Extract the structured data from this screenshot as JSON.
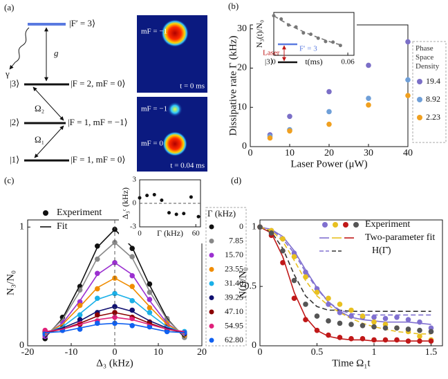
{
  "level_diagram": {
    "label": "(a)",
    "levels": [
      "|F′ = 3⟩",
      "|F = 2, mF = 0⟩",
      "|F = 1, mF = −1⟩",
      "|F = 1, mF = 0⟩"
    ],
    "states": [
      "|3⟩",
      "|2⟩",
      "|1⟩"
    ],
    "gamma": "γ",
    "coupling": "g",
    "omega2": "Ω₂",
    "omega1": "Ω₁",
    "images": [
      {
        "labels": [
          "mF = −1"
        ],
        "time": "t = 0 ms"
      },
      {
        "labels": [
          "mF = −1",
          "mF = 0"
        ],
        "time": "t = 0.04 ms"
      }
    ]
  },
  "chart_data": [
    {
      "type": "scatter",
      "label": "(b)",
      "xlabel": "Laser Power (μW)",
      "ylabel": "Dissipative rate Γ (kHz)",
      "xlim": [
        0,
        40
      ],
      "xticks": [
        0,
        10,
        20,
        30,
        40
      ],
      "ylim": [
        0,
        31
      ],
      "yticks": [
        0,
        10,
        20,
        30
      ],
      "legend_title": "Phase Space Density",
      "x": [
        5,
        10,
        20,
        30,
        40
      ],
      "series": [
        {
          "name": "19.4",
          "color": "#7b6fc7",
          "style": "points",
          "values": [
            3,
            7.7,
            14,
            20.7,
            26.7
          ]
        },
        {
          "name": "8.92",
          "color": "#6f9fd8",
          "style": "points",
          "values": [
            2.6,
            4.3,
            8.9,
            12.3,
            17
          ]
        },
        {
          "name": "2.23",
          "color": "#f0a020",
          "style": "points",
          "values": [
            2.2,
            4,
            5.7,
            10.6,
            13
          ]
        }
      ]
    },
    {
      "type": "scatter",
      "xlabel": "t(ms)",
      "ylabel": "N₃(t)/N₀",
      "xlim": [
        0,
        0.065
      ],
      "xticks": [
        0,
        0.06
      ],
      "ylim": [
        0.4,
        1.05
      ],
      "yticks": [],
      "annotations": [
        "Laser",
        "F′ = 3",
        "|3⟩"
      ],
      "x": [
        0,
        0.006,
        0.012,
        0.018,
        0.024,
        0.03,
        0.036,
        0.042,
        0.048,
        0.054
      ],
      "series": [
        {
          "color": "#777777",
          "style": "points",
          "values": [
            1,
            0.95,
            0.86,
            0.83,
            0.74,
            0.72,
            0.66,
            0.61,
            0.6,
            0.55
          ]
        },
        {
          "color": "#777777",
          "style": "dashed",
          "values": [
            1,
            0.93,
            0.87,
            0.81,
            0.76,
            0.71,
            0.67,
            0.63,
            0.59,
            0.56
          ]
        }
      ]
    },
    {
      "type": "scatter",
      "label": "(c)",
      "xlabel": "Δ₃ (kHz)",
      "ylabel": "N₃/N₀",
      "xlim": [
        -20,
        20
      ],
      "xticks": [
        -20,
        -10,
        0,
        10,
        20
      ],
      "ylim": [
        0,
        1.06
      ],
      "yticks": [
        0,
        1
      ],
      "legend": [
        "Experiment",
        "Fit"
      ],
      "legend_title": "Γ (kHz)",
      "x": [
        -16,
        -12,
        -8,
        -4,
        0,
        4,
        8,
        12,
        16
      ],
      "series": [
        {
          "name": "0",
          "color": "#111111",
          "style": "points",
          "values": [
            0.06,
            0.24,
            0.5,
            0.84,
            0.98,
            0.82,
            0.52,
            0.22,
            0.08
          ]
        },
        {
          "name": "7.85",
          "color": "#888888",
          "style": "points",
          "values": [
            0.09,
            0.21,
            0.47,
            0.73,
            0.87,
            0.75,
            0.45,
            0.23,
            0.07
          ]
        },
        {
          "name": "15.70",
          "color": "#9b30d0",
          "style": "points",
          "values": [
            0.08,
            0.2,
            0.37,
            0.61,
            0.7,
            0.59,
            0.39,
            0.18,
            0.1
          ]
        },
        {
          "name": "23.55",
          "color": "#f08c00",
          "style": "points",
          "values": [
            0.11,
            0.17,
            0.34,
            0.48,
            0.57,
            0.5,
            0.32,
            0.19,
            0.09
          ]
        },
        {
          "name": "31.40",
          "color": "#1ab0e8",
          "style": "points",
          "values": [
            0.1,
            0.17,
            0.26,
            0.4,
            0.44,
            0.38,
            0.28,
            0.15,
            0.12
          ]
        },
        {
          "name": "39.25",
          "color": "#101070",
          "style": "points",
          "values": [
            0.12,
            0.14,
            0.22,
            0.28,
            0.33,
            0.3,
            0.2,
            0.16,
            0.1
          ]
        },
        {
          "name": "47.10",
          "color": "#8b0000",
          "style": "points",
          "values": [
            0.1,
            0.15,
            0.18,
            0.26,
            0.28,
            0.24,
            0.2,
            0.13,
            0.11
          ]
        },
        {
          "name": "54.95",
          "color": "#e0207a",
          "style": "points",
          "values": [
            0.13,
            0.13,
            0.19,
            0.21,
            0.24,
            0.23,
            0.17,
            0.15,
            0.11
          ]
        },
        {
          "name": "62.80",
          "color": "#1060f0",
          "style": "points",
          "values": [
            0.1,
            0.13,
            0.14,
            0.19,
            0.19,
            0.17,
            0.16,
            0.12,
            0.11
          ]
        },
        {
          "color": "#111111",
          "style": "line",
          "values": [
            0.07,
            0.23,
            0.51,
            0.83,
            0.98,
            0.83,
            0.51,
            0.23,
            0.07
          ]
        },
        {
          "color": "#888888",
          "style": "line",
          "values": [
            0.08,
            0.22,
            0.46,
            0.74,
            0.87,
            0.74,
            0.46,
            0.22,
            0.08
          ]
        },
        {
          "color": "#9b30d0",
          "style": "line",
          "values": [
            0.09,
            0.19,
            0.38,
            0.6,
            0.7,
            0.6,
            0.38,
            0.19,
            0.09
          ]
        },
        {
          "color": "#f08c00",
          "style": "line",
          "values": [
            0.1,
            0.18,
            0.33,
            0.49,
            0.57,
            0.49,
            0.33,
            0.18,
            0.1
          ]
        },
        {
          "color": "#1ab0e8",
          "style": "line",
          "values": [
            0.11,
            0.16,
            0.27,
            0.39,
            0.44,
            0.39,
            0.27,
            0.16,
            0.11
          ]
        },
        {
          "color": "#101070",
          "style": "line",
          "values": [
            0.11,
            0.15,
            0.21,
            0.29,
            0.33,
            0.29,
            0.21,
            0.15,
            0.11
          ]
        },
        {
          "color": "#8b0000",
          "style": "line",
          "values": [
            0.11,
            0.14,
            0.19,
            0.25,
            0.28,
            0.25,
            0.19,
            0.14,
            0.11
          ]
        },
        {
          "color": "#e0207a",
          "style": "line",
          "values": [
            0.12,
            0.14,
            0.18,
            0.22,
            0.24,
            0.22,
            0.18,
            0.14,
            0.12
          ]
        },
        {
          "color": "#1060f0",
          "style": "line",
          "values": [
            0.11,
            0.12,
            0.15,
            0.18,
            0.19,
            0.18,
            0.15,
            0.12,
            0.11
          ]
        }
      ]
    },
    {
      "type": "scatter",
      "xlabel": "Γ (kHz)",
      "ylabel": "Δ₃ᶜ (kHz)",
      "xlim": [
        0,
        65
      ],
      "xticks": [
        0,
        60
      ],
      "ylim": [
        -3,
        3
      ],
      "yticks": [
        -3,
        0,
        3
      ],
      "x": [
        0,
        7.85,
        15.7,
        23.55,
        31.4,
        39.25,
        47.1,
        54.95,
        62.8
      ],
      "series": [
        {
          "color": "#111111",
          "style": "points",
          "values": [
            0.7,
            1,
            1.1,
            0.4,
            -1.2,
            -1.4,
            -1.3,
            0.8,
            -1.7
          ]
        }
      ]
    },
    {
      "type": "scatter",
      "label": "(d)",
      "xlabel": "Time Ω₁t",
      "ylabel": "N(t)/N₀",
      "xlim": [
        0,
        1.6
      ],
      "xticks": [
        0,
        0.5,
        1,
        1.5
      ],
      "ylim": [
        0,
        1.06
      ],
      "yticks": [
        0,
        0.5,
        1
      ],
      "legend": [
        "Experiment",
        "Two-parameter fit",
        "H(Γ̄)"
      ],
      "x": [
        0,
        0.1,
        0.2,
        0.3,
        0.4,
        0.5,
        0.6,
        0.7,
        0.8,
        0.9,
        1,
        1.1,
        1.2,
        1.3,
        1.4,
        1.5
      ],
      "series": [
        {
          "color": "#8070d0",
          "style": "line",
          "values": [
            1,
            0.98,
            0.92,
            0.8,
            0.64,
            0.49,
            0.37,
            0.29,
            0.24,
            0.22,
            0.21,
            0.2,
            0.2,
            0.2,
            0.19,
            0.18
          ]
        },
        {
          "color": "#c01818",
          "style": "line",
          "values": [
            1,
            0.95,
            0.75,
            0.45,
            0.24,
            0.13,
            0.08,
            0.06,
            0.05,
            0.05,
            0.04,
            0.04,
            0.04,
            0.04,
            0.04,
            0.04
          ]
        },
        {
          "color": "#8070d0",
          "style": "dashed",
          "values": [
            1,
            0.98,
            0.9,
            0.78,
            0.62,
            0.48,
            0.37,
            0.3,
            0.27,
            0.26,
            0.26,
            0.26,
            0.26,
            0.26,
            0.26,
            0.26
          ]
        },
        {
          "color": "#333333",
          "style": "dashed",
          "values": [
            1,
            0.96,
            0.82,
            0.6,
            0.42,
            0.33,
            0.3,
            0.3,
            0.29,
            0.29,
            0.29,
            0.29,
            0.29,
            0.29,
            0.29,
            0.29
          ]
        },
        {
          "color": "#e8c020",
          "style": "dashed",
          "values": [
            1,
            0.97,
            0.88,
            0.72,
            0.55,
            0.42,
            0.34,
            0.28,
            0.23,
            0.19,
            0.16,
            0.14,
            0.12,
            0.11,
            0.1,
            0.1
          ]
        },
        {
          "color": "#8070d0",
          "style": "points",
          "values": [
            1,
            0.97,
            0.9,
            0.78,
            0.62,
            0.48,
            0.35,
            0.28,
            0.25,
            0.24,
            0.24,
            0.23,
            0.24,
            0.22,
            0.2,
            0.15
          ]
        },
        {
          "color": "#e8c020",
          "style": "points",
          "values": [
            1,
            0.97,
            0.9,
            0.75,
            0.58,
            0.45,
            0.4,
            0.35,
            0.3,
            0.25,
            0.2,
            0.18,
            0.15,
            0.12,
            0.08,
            0.05
          ]
        },
        {
          "color": "#c01818",
          "style": "points",
          "values": [
            1,
            0.93,
            0.7,
            0.4,
            0.22,
            0.13,
            0.09,
            0.07,
            0.06,
            0.06,
            0.05,
            0.05,
            0.05,
            0.04,
            0.04,
            0.04
          ]
        },
        {
          "color": "#555555",
          "style": "points",
          "values": [
            1,
            0.95,
            0.8,
            0.55,
            0.35,
            0.25,
            0.21,
            0.19,
            0.18,
            0.17,
            0.16,
            0.15,
            0.15,
            0.14,
            0.13,
            0.12
          ]
        }
      ]
    }
  ]
}
